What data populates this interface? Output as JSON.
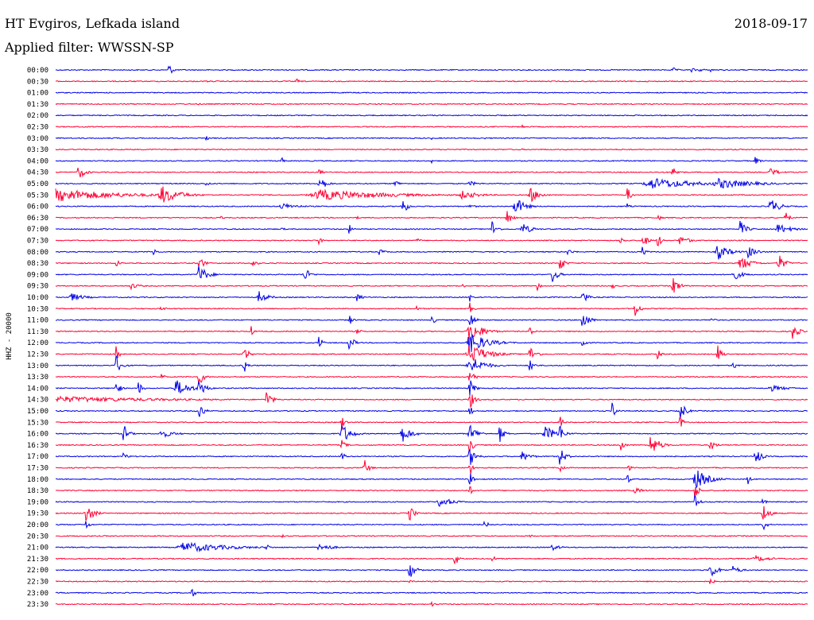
{
  "header": {
    "station": "HT Evgiros, Lefkada island",
    "filter": "Applied filter: WWSSN-SP",
    "date": "2018-09-17"
  },
  "chart_data": {
    "type": "line",
    "ylabel": "HHZ - 20000",
    "colors": {
      "even": "#0000e6",
      "odd": "#ff0033"
    },
    "traces": [
      {
        "label": "00:00",
        "events": [
          [
            0.15,
            0.6,
            10
          ],
          [
            0.82,
            0.3,
            10
          ],
          [
            0.845,
            0.25,
            10
          ],
          [
            0.855,
            0.2,
            10
          ],
          [
            0.86,
            0.15,
            10
          ],
          [
            0.87,
            0.2,
            10
          ]
        ]
      },
      {
        "label": "00:30",
        "events": [
          [
            0.2,
            0.15,
            5
          ],
          [
            0.32,
            0.3,
            6
          ]
        ]
      },
      {
        "label": "01:00",
        "events": [
          [
            0.92,
            0.1,
            4
          ]
        ]
      },
      {
        "label": "01:30",
        "events": [
          [
            0.19,
            0.15,
            4
          ]
        ]
      },
      {
        "label": "02:00",
        "events": [
          [
            0.5,
            0.1,
            4
          ],
          [
            0.77,
            0.12,
            4
          ]
        ]
      },
      {
        "label": "02:30",
        "events": [
          [
            0.62,
            0.25,
            6
          ],
          [
            0.93,
            0.1,
            4
          ]
        ]
      },
      {
        "label": "03:00",
        "events": [
          [
            0.2,
            0.3,
            6
          ],
          [
            0.5,
            0.12,
            4
          ],
          [
            0.57,
            0.12,
            4
          ]
        ]
      },
      {
        "label": "03:30",
        "events": [
          [
            0.34,
            0.18,
            4
          ],
          [
            0.62,
            0.1,
            4
          ]
        ]
      },
      {
        "label": "04:00",
        "events": [
          [
            0.3,
            0.4,
            6
          ],
          [
            0.5,
            0.2,
            6
          ],
          [
            0.93,
            0.4,
            10
          ],
          [
            0.84,
            0.2,
            6
          ]
        ]
      },
      {
        "label": "04:30",
        "events": [
          [
            0.03,
            0.7,
            15
          ],
          [
            0.35,
            0.4,
            8
          ],
          [
            0.82,
            0.5,
            14
          ],
          [
            0.95,
            0.4,
            20
          ]
        ]
      },
      {
        "label": "05:00",
        "events": [
          [
            0.2,
            0.3,
            8
          ],
          [
            0.35,
            0.8,
            15
          ],
          [
            0.45,
            0.5,
            10
          ],
          [
            0.55,
            0.25,
            20
          ],
          [
            0.79,
            0.55,
            100
          ],
          [
            0.88,
            0.5,
            80
          ]
        ]
      },
      {
        "label": "05:30",
        "events": [
          [
            0.0,
            0.6,
            140
          ],
          [
            0.14,
            0.9,
            40
          ],
          [
            0.35,
            0.5,
            160
          ],
          [
            0.54,
            0.4,
            40
          ],
          [
            0.63,
            0.8,
            20
          ],
          [
            0.76,
            0.8,
            8
          ]
        ]
      },
      {
        "label": "06:00",
        "events": [
          [
            0.3,
            0.3,
            40
          ],
          [
            0.46,
            0.9,
            12
          ],
          [
            0.55,
            0.2,
            15
          ],
          [
            0.61,
            1.0,
            20
          ],
          [
            0.76,
            0.3,
            6
          ],
          [
            0.95,
            0.8,
            20
          ]
        ]
      },
      {
        "label": "06:30",
        "events": [
          [
            0.22,
            0.25,
            6
          ],
          [
            0.4,
            0.2,
            6
          ],
          [
            0.6,
            0.8,
            10
          ],
          [
            0.8,
            0.4,
            8
          ],
          [
            0.97,
            0.6,
            10
          ]
        ]
      },
      {
        "label": "07:00",
        "events": [
          [
            0.3,
            0.2,
            8
          ],
          [
            0.39,
            0.5,
            8
          ],
          [
            0.58,
            0.9,
            10
          ],
          [
            0.62,
            0.6,
            20
          ],
          [
            0.91,
            0.8,
            14
          ],
          [
            0.96,
            0.5,
            30
          ]
        ]
      },
      {
        "label": "07:30",
        "events": [
          [
            0.35,
            0.5,
            6
          ],
          [
            0.48,
            0.25,
            8
          ],
          [
            0.75,
            0.3,
            15
          ],
          [
            0.78,
            0.9,
            10
          ],
          [
            0.8,
            0.7,
            10
          ],
          [
            0.83,
            0.5,
            20
          ]
        ]
      },
      {
        "label": "08:00",
        "events": [
          [
            0.13,
            0.6,
            6
          ],
          [
            0.43,
            0.3,
            15
          ],
          [
            0.68,
            0.3,
            15
          ],
          [
            0.88,
            0.8,
            25
          ],
          [
            0.92,
            0.6,
            20
          ],
          [
            0.78,
            0.5,
            8
          ]
        ]
      },
      {
        "label": "08:30",
        "events": [
          [
            0.08,
            0.4,
            10
          ],
          [
            0.19,
            0.9,
            10
          ],
          [
            0.26,
            0.3,
            15
          ],
          [
            0.67,
            0.9,
            10
          ],
          [
            0.91,
            0.7,
            25
          ],
          [
            0.96,
            1.0,
            14
          ]
        ]
      },
      {
        "label": "09:00",
        "events": [
          [
            0.19,
            0.9,
            20
          ],
          [
            0.33,
            0.8,
            12
          ],
          [
            0.66,
            0.9,
            12
          ],
          [
            0.9,
            0.6,
            20
          ]
        ]
      },
      {
        "label": "09:30",
        "events": [
          [
            0.1,
            0.3,
            20
          ],
          [
            0.54,
            0.3,
            6
          ],
          [
            0.64,
            0.5,
            8
          ],
          [
            0.82,
            0.9,
            14
          ],
          [
            0.74,
            0.3,
            8
          ]
        ]
      },
      {
        "label": "10:00",
        "events": [
          [
            0.02,
            0.4,
            30
          ],
          [
            0.27,
            0.6,
            20
          ],
          [
            0.4,
            0.5,
            10
          ],
          [
            0.7,
            0.9,
            10
          ],
          [
            0.55,
            0.8,
            4
          ]
        ]
      },
      {
        "label": "10:30",
        "events": [
          [
            0.14,
            0.3,
            10
          ],
          [
            0.48,
            0.3,
            6
          ],
          [
            0.55,
            0.7,
            8
          ],
          [
            0.77,
            0.9,
            10
          ]
        ]
      },
      {
        "label": "11:00",
        "events": [
          [
            0.39,
            0.6,
            8
          ],
          [
            0.5,
            0.5,
            8
          ],
          [
            0.55,
            1.0,
            10
          ],
          [
            0.7,
            1.0,
            14
          ],
          [
            0.87,
            0.3,
            10
          ]
        ]
      },
      {
        "label": "11:30",
        "events": [
          [
            0.26,
            0.5,
            6
          ],
          [
            0.4,
            0.3,
            10
          ],
          [
            0.55,
            1.0,
            30
          ],
          [
            0.63,
            0.4,
            10
          ],
          [
            0.98,
            0.9,
            12
          ]
        ]
      },
      {
        "label": "12:00",
        "events": [
          [
            0.35,
            1.0,
            6
          ],
          [
            0.39,
            0.9,
            10
          ],
          [
            0.55,
            1.0,
            40
          ],
          [
            0.7,
            0.8,
            8
          ]
        ]
      },
      {
        "label": "12:30",
        "events": [
          [
            0.08,
            1.0,
            6
          ],
          [
            0.25,
            0.9,
            10
          ],
          [
            0.55,
            1.0,
            40
          ],
          [
            0.63,
            0.8,
            14
          ],
          [
            0.8,
            0.5,
            8
          ],
          [
            0.88,
            0.9,
            10
          ]
        ]
      },
      {
        "label": "13:00",
        "events": [
          [
            0.08,
            1.0,
            12
          ],
          [
            0.25,
            0.8,
            8
          ],
          [
            0.55,
            1.0,
            30
          ],
          [
            0.63,
            0.9,
            8
          ],
          [
            0.9,
            0.5,
            8
          ]
        ]
      },
      {
        "label": "13:30",
        "events": [
          [
            0.14,
            0.4,
            8
          ],
          [
            0.19,
            1.0,
            10
          ],
          [
            0.55,
            1.0,
            10
          ]
        ]
      },
      {
        "label": "14:00",
        "events": [
          [
            0.08,
            1.0,
            8
          ],
          [
            0.11,
            0.7,
            8
          ],
          [
            0.16,
            0.8,
            30
          ],
          [
            0.19,
            1.0,
            14
          ],
          [
            0.55,
            1.0,
            10
          ],
          [
            0.95,
            0.3,
            40
          ]
        ]
      },
      {
        "label": "14:30",
        "events": [
          [
            0.0,
            0.3,
            250
          ],
          [
            0.28,
            0.9,
            12
          ],
          [
            0.55,
            1.0,
            10
          ]
        ]
      },
      {
        "label": "15:00",
        "events": [
          [
            0.19,
            1.0,
            10
          ],
          [
            0.55,
            1.0,
            6
          ],
          [
            0.74,
            0.9,
            8
          ],
          [
            0.83,
            1.0,
            12
          ]
        ]
      },
      {
        "label": "15:30",
        "events": [
          [
            0.38,
            1.0,
            6
          ],
          [
            0.67,
            1.0,
            6
          ],
          [
            0.83,
            0.9,
            6
          ]
        ]
      },
      {
        "label": "16:00",
        "events": [
          [
            0.09,
            1.0,
            10
          ],
          [
            0.14,
            0.4,
            30
          ],
          [
            0.38,
            1.0,
            20
          ],
          [
            0.46,
            0.9,
            20
          ],
          [
            0.55,
            1.0,
            16
          ],
          [
            0.59,
            0.9,
            10
          ],
          [
            0.65,
            0.7,
            30
          ],
          [
            0.67,
            1.0,
            10
          ]
        ]
      },
      {
        "label": "16:30",
        "events": [
          [
            0.38,
            0.5,
            10
          ],
          [
            0.55,
            1.0,
            8
          ],
          [
            0.75,
            1.0,
            8
          ],
          [
            0.79,
            1.0,
            20
          ],
          [
            0.87,
            0.8,
            10
          ],
          [
            0.8,
            0.6,
            10
          ]
        ]
      },
      {
        "label": "17:00",
        "events": [
          [
            0.09,
            0.4,
            10
          ],
          [
            0.38,
            0.8,
            6
          ],
          [
            0.55,
            1.0,
            14
          ],
          [
            0.62,
            0.5,
            20
          ],
          [
            0.67,
            1.0,
            12
          ],
          [
            0.93,
            1.0,
            12
          ]
        ]
      },
      {
        "label": "17:30",
        "events": [
          [
            0.41,
            0.9,
            10
          ],
          [
            0.55,
            1.0,
            6
          ],
          [
            0.67,
            0.6,
            8
          ],
          [
            0.76,
            0.6,
            6
          ]
        ]
      },
      {
        "label": "18:00",
        "events": [
          [
            0.55,
            1.0,
            6
          ],
          [
            0.85,
            1.0,
            30
          ],
          [
            0.92,
            0.6,
            6
          ],
          [
            0.76,
            0.6,
            6
          ]
        ]
      },
      {
        "label": "18:30",
        "events": [
          [
            0.55,
            0.6,
            6
          ],
          [
            0.77,
            0.3,
            20
          ],
          [
            0.85,
            1.0,
            8
          ]
        ]
      },
      {
        "label": "19:00",
        "events": [
          [
            0.51,
            0.5,
            30
          ],
          [
            0.85,
            1.0,
            8
          ],
          [
            0.94,
            0.5,
            6
          ]
        ]
      },
      {
        "label": "19:30",
        "events": [
          [
            0.04,
            1.0,
            16
          ],
          [
            0.47,
            0.9,
            10
          ],
          [
            0.94,
            1.0,
            14
          ]
        ]
      },
      {
        "label": "20:00",
        "events": [
          [
            0.04,
            0.5,
            8
          ],
          [
            0.57,
            0.4,
            10
          ],
          [
            0.94,
            0.8,
            8
          ]
        ]
      },
      {
        "label": "20:30",
        "events": [
          [
            0.3,
            0.2,
            8
          ],
          [
            0.63,
            0.2,
            8
          ]
        ]
      },
      {
        "label": "21:00",
        "events": [
          [
            0.17,
            0.5,
            100
          ],
          [
            0.35,
            0.4,
            30
          ],
          [
            0.66,
            0.3,
            20
          ],
          [
            0.28,
            0.5,
            6
          ]
        ]
      },
      {
        "label": "21:30",
        "events": [
          [
            0.53,
            0.9,
            8
          ],
          [
            0.58,
            0.4,
            8
          ],
          [
            0.93,
            0.3,
            40
          ]
        ]
      },
      {
        "label": "22:00",
        "events": [
          [
            0.47,
            1.0,
            12
          ],
          [
            0.87,
            1.0,
            14
          ],
          [
            0.9,
            0.4,
            20
          ]
        ]
      },
      {
        "label": "22:30",
        "events": [
          [
            0.47,
            0.3,
            10
          ],
          [
            0.87,
            0.3,
            10
          ]
        ]
      },
      {
        "label": "23:00",
        "events": [
          [
            0.18,
            0.6,
            8
          ]
        ]
      },
      {
        "label": "23:30",
        "events": [
          [
            0.5,
            0.3,
            6
          ]
        ]
      }
    ]
  }
}
